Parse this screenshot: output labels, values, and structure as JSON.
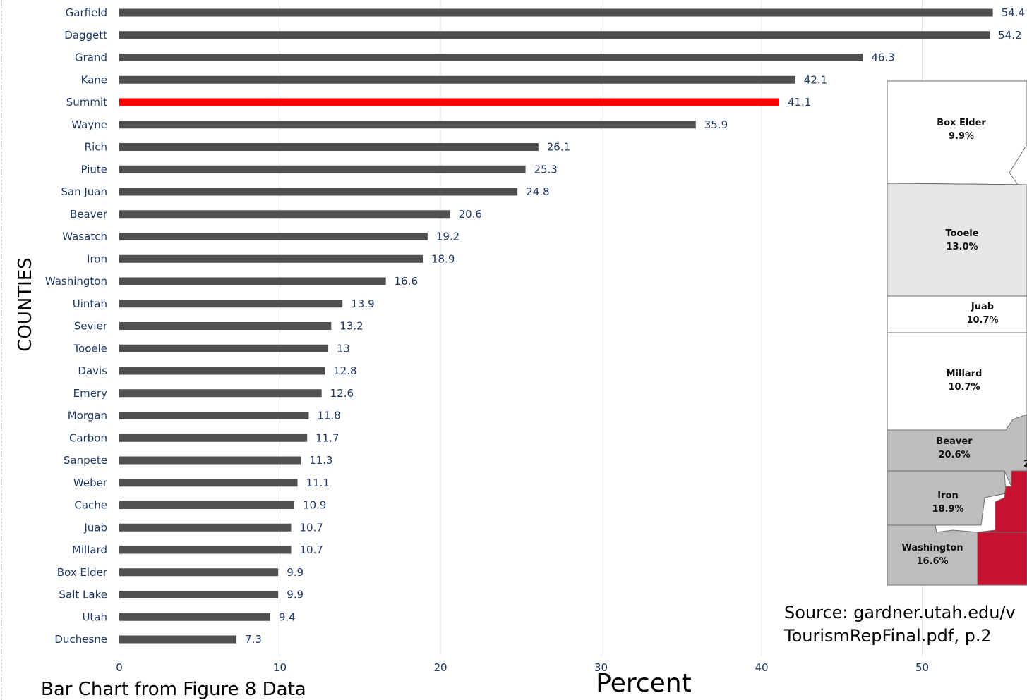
{
  "chart_data": {
    "type": "bar",
    "orientation": "horizontal",
    "categories": [
      "Garfield",
      "Daggett",
      "Grand",
      "Kane",
      "Summit",
      "Wayne",
      "Rich",
      "Piute",
      "San Juan",
      "Beaver",
      "Wasatch",
      "Iron",
      "Washington",
      "Uintah",
      "Sevier",
      "Tooele",
      "Davis",
      "Emery",
      "Morgan",
      "Carbon",
      "Sanpete",
      "Weber",
      "Cache",
      "Juab",
      "Millard",
      "Box Elder",
      "Salt Lake",
      "Utah",
      "Duchesne"
    ],
    "values": [
      54.4,
      54.2,
      46.3,
      42.1,
      41.1,
      35.9,
      26.1,
      25.3,
      24.8,
      20.6,
      19.2,
      18.9,
      16.6,
      13.9,
      13.2,
      13,
      12.8,
      12.6,
      11.8,
      11.7,
      11.3,
      11.1,
      10.9,
      10.7,
      10.7,
      9.9,
      9.9,
      9.4,
      7.3
    ],
    "data_labels": [
      "54.4",
      "54.2",
      "46.3",
      "42.1",
      "41.1",
      "35.9",
      "26.1",
      "25.3",
      "24.8",
      "20.6",
      "19.2",
      "18.9",
      "16.6",
      "13.9",
      "13.2",
      "13",
      "12.8",
      "12.6",
      "11.8",
      "11.7",
      "11.3",
      "11.1",
      "10.9",
      "10.7",
      "10.7",
      "9.9",
      "9.9",
      "9.4",
      "7.3"
    ],
    "highlight_category": "Summit",
    "colors": {
      "bar": "#505050",
      "highlight": "#ff0000",
      "label": "#1f3864",
      "grid": "#d9e4ef"
    },
    "xlim": [
      0,
      60
    ],
    "x_ticks": [
      0,
      10,
      20,
      30,
      40,
      50
    ],
    "xlabel": "Percent",
    "ylabel": "COUNTIES",
    "grid": "vertical"
  },
  "map_inset": {
    "regions": [
      {
        "name": "Box Elder",
        "value": "9.9%",
        "fill": "#ffffff"
      },
      {
        "name": "Tooele",
        "value": "13.0%",
        "fill": "#e6e6e6"
      },
      {
        "name": "Juab",
        "value": "10.7%",
        "fill": "#ffffff"
      },
      {
        "name": "Millard",
        "value": "10.7%",
        "fill": "#ffffff"
      },
      {
        "name": "Beaver",
        "value": "20.6%",
        "fill": "#bdbdbd"
      },
      {
        "name": "Iron",
        "value": "18.9%",
        "fill": "#bdbdbd"
      },
      {
        "name": "Washington",
        "value": "16.6%",
        "fill": "#bdbdbd"
      }
    ],
    "partial_label": "2",
    "highlight_fill": "#c41230"
  },
  "caption": "Bar Chart from Figure 8 Data",
  "source": "Source: gardner.utah.edu/v\nTourismRepFinal.pdf, p.2"
}
